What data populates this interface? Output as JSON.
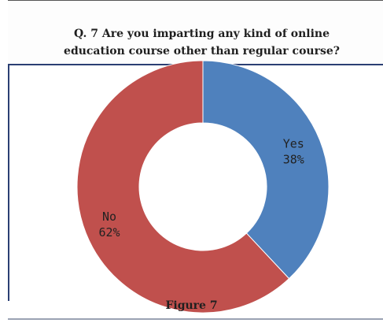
{
  "chart_data": {
    "type": "pie",
    "variant": "donut",
    "title_lines": [
      "Q. 7 Are you imparting any kind of online",
      "education course other than regular course?"
    ],
    "slices": [
      {
        "label": "Yes",
        "value": 38,
        "value_label": "38%",
        "color": "#4f81bd"
      },
      {
        "label": "No",
        "value": 62,
        "value_label": "62%",
        "color": "#c0504d"
      }
    ],
    "caption": "Figure 7",
    "legend": "none"
  }
}
